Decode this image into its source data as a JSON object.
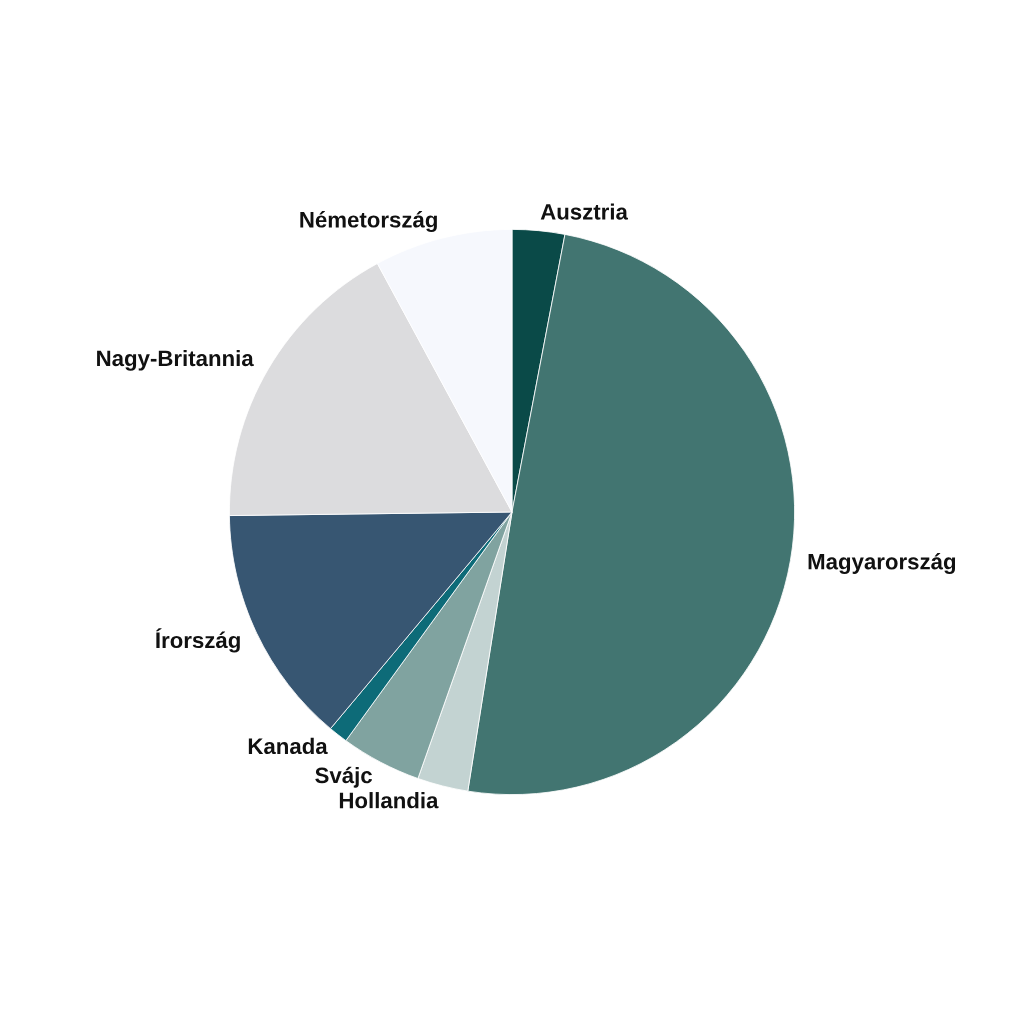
{
  "chart_data": {
    "type": "pie",
    "categories": [
      "Ausztria",
      "Magyarország",
      "Hollandia",
      "Svájc",
      "Kanada",
      "Írország",
      "Nagy-Britannia",
      "Németország"
    ],
    "values": [
      3.0,
      49.5,
      2.9,
      4.6,
      1.1,
      13.7,
      17.3,
      7.9
    ],
    "colors": [
      "#0a4a48",
      "#427571",
      "#c3d3d2",
      "#80a3a0",
      "#0d6b78",
      "#375672",
      "#dcdcde",
      "#f6f8fd"
    ]
  }
}
